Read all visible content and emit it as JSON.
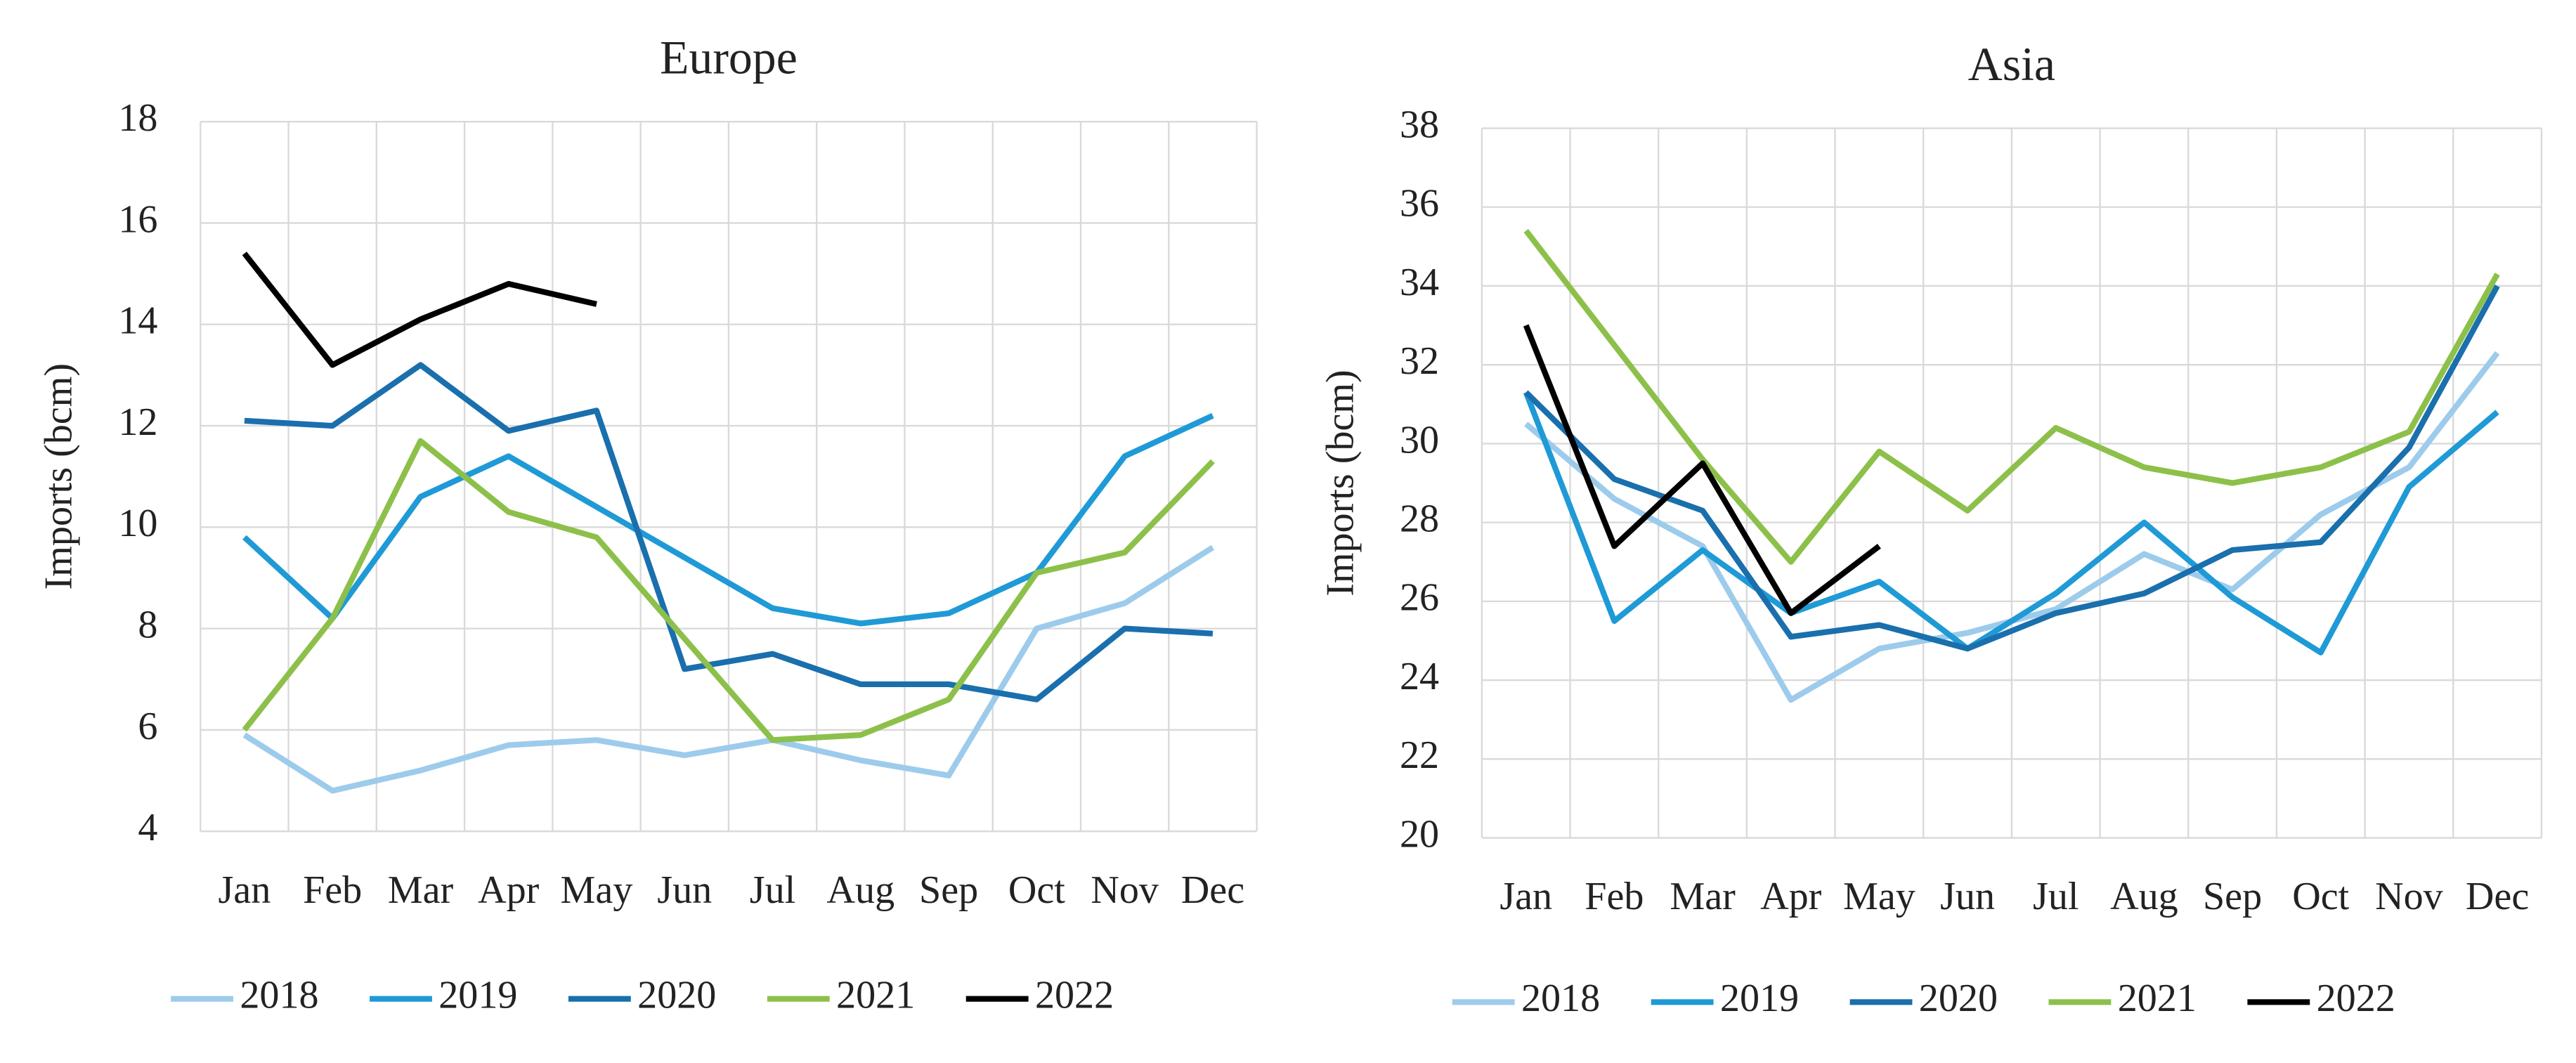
{
  "chart_data": [
    {
      "type": "line",
      "title": "Europe",
      "y_label": "Imports (bcm)",
      "categories": [
        "Jan",
        "Feb",
        "Mar",
        "Apr",
        "May",
        "Jun",
        "Jul",
        "Aug",
        "Sep",
        "Oct",
        "Nov",
        "Dec"
      ],
      "ylim": [
        4,
        18
      ],
      "yticks": [
        4,
        6,
        8,
        10,
        12,
        14,
        16,
        18
      ],
      "grid": true,
      "legend": "bottom",
      "series": [
        {
          "name": "2018",
          "color": "#9dcbeb",
          "values": [
            5.9,
            4.8,
            5.2,
            5.7,
            5.8,
            5.5,
            5.8,
            5.4,
            5.1,
            8.0,
            8.5,
            9.6
          ]
        },
        {
          "name": "2019",
          "color": "#1f9ad6",
          "values": [
            9.8,
            8.2,
            10.6,
            11.4,
            10.4,
            9.4,
            8.4,
            8.1,
            8.3,
            9.1,
            11.4,
            12.2
          ]
        },
        {
          "name": "2020",
          "color": "#1a6fad",
          "values": [
            12.1,
            12.0,
            13.2,
            11.9,
            12.3,
            7.2,
            7.5,
            6.9,
            6.9,
            6.6,
            8.0,
            7.9
          ]
        },
        {
          "name": "2021",
          "color": "#8dc04a",
          "values": [
            6.0,
            8.2,
            11.7,
            10.3,
            9.8,
            7.8,
            5.8,
            5.9,
            6.6,
            9.1,
            9.5,
            11.3
          ]
        },
        {
          "name": "2022",
          "color": "#000000",
          "values": [
            15.4,
            13.2,
            14.1,
            14.8,
            14.4,
            null,
            null,
            null,
            null,
            null,
            null,
            null
          ]
        }
      ]
    },
    {
      "type": "line",
      "title": "Asia",
      "y_label": "Imports (bcm)",
      "categories": [
        "Jan",
        "Feb",
        "Mar",
        "Apr",
        "May",
        "Jun",
        "Jul",
        "Aug",
        "Sep",
        "Oct",
        "Nov",
        "Dec"
      ],
      "ylim": [
        20,
        38
      ],
      "yticks": [
        20,
        22,
        24,
        26,
        28,
        30,
        32,
        34,
        36,
        38
      ],
      "grid": true,
      "legend": "bottom",
      "series": [
        {
          "name": "2018",
          "color": "#9dcbeb",
          "values": [
            30.5,
            28.6,
            27.4,
            23.5,
            24.8,
            25.2,
            25.8,
            27.2,
            26.3,
            28.2,
            29.4,
            32.3
          ]
        },
        {
          "name": "2019",
          "color": "#1f9ad6",
          "values": [
            31.3,
            25.5,
            27.3,
            25.7,
            26.5,
            24.8,
            26.2,
            28.0,
            26.1,
            24.7,
            28.9,
            30.8
          ]
        },
        {
          "name": "2020",
          "color": "#1a6fad",
          "values": [
            31.3,
            29.1,
            28.3,
            25.1,
            25.4,
            24.8,
            25.7,
            26.2,
            27.3,
            27.5,
            29.9,
            34.0
          ]
        },
        {
          "name": "2021",
          "color": "#8dc04a",
          "values": [
            35.4,
            32.5,
            29.6,
            27.0,
            29.8,
            28.3,
            30.4,
            29.4,
            29.0,
            29.4,
            30.3,
            34.3
          ]
        },
        {
          "name": "2022",
          "color": "#000000",
          "values": [
            33.0,
            27.4,
            29.5,
            25.7,
            27.4,
            null,
            null,
            null,
            null,
            null,
            null,
            null
          ]
        }
      ]
    }
  ]
}
